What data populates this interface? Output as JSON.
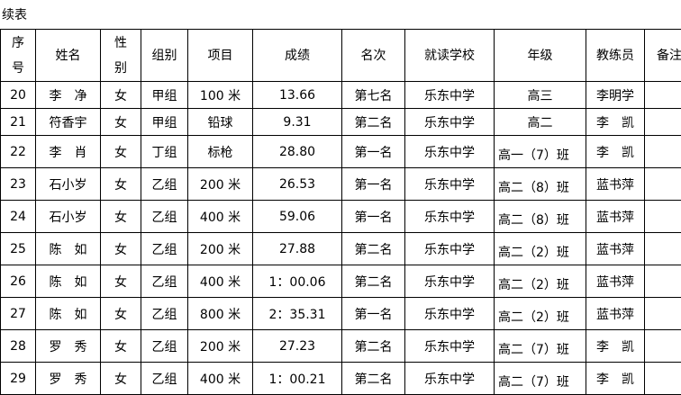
{
  "caption": "续表",
  "headers": [
    "序号",
    "姓名",
    "性别",
    "组别",
    "项目",
    "成绩",
    "名次",
    "就读学校",
    "年级",
    "教练员",
    "备注"
  ],
  "header_lines": {
    "seq": [
      "序",
      "号"
    ],
    "gender": [
      "性",
      "别"
    ]
  },
  "rows": [
    [
      "20",
      "李　净",
      "女",
      "甲组",
      "100 米",
      "13.66",
      "第七名",
      "乐东中学",
      "高三",
      "李明学",
      ""
    ],
    [
      "21",
      "符香宇",
      "女",
      "甲组",
      "铅球",
      "9.31",
      "第二名",
      "乐东中学",
      "高二",
      "李　凯",
      ""
    ],
    [
      "22",
      "李　肖",
      "女",
      "丁组",
      "标枪",
      "28.80",
      "第一名",
      "乐东中学",
      "高一（7）班",
      "李　凯",
      ""
    ],
    [
      "23",
      "石小岁",
      "女",
      "乙组",
      "200 米",
      "26.53",
      "第一名",
      "乐东中学",
      "高二（8）班",
      "蓝书萍",
      ""
    ],
    [
      "24",
      "石小岁",
      "女",
      "乙组",
      "400 米",
      "59.06",
      "第一名",
      "乐东中学",
      "高二（8）班",
      "蓝书萍",
      ""
    ],
    [
      "25",
      "陈　如",
      "女",
      "乙组",
      "200 米",
      "27.88",
      "第二名",
      "乐东中学",
      "高二（2）班",
      "蓝书萍",
      ""
    ],
    [
      "26",
      "陈　如",
      "女",
      "乙组",
      "400 米",
      "1：00.06",
      "第二名",
      "乐东中学",
      "高二（2）班",
      "蓝书萍",
      ""
    ],
    [
      "27",
      "陈　如",
      "女",
      "乙组",
      "800 米",
      "2：35.31",
      "第一名",
      "乐东中学",
      "高二（2）班",
      "蓝书萍",
      ""
    ],
    [
      "28",
      "罗　秀",
      "女",
      "乙组",
      "200 米",
      "27.23",
      "第二名",
      "乐东中学",
      "高二（7）班",
      "李　凯",
      ""
    ],
    [
      "29",
      "罗　秀",
      "女",
      "乙组",
      "400 米",
      "1：00.21",
      "第二名",
      "乐东中学",
      "高二（7）班",
      "李　凯",
      ""
    ]
  ]
}
